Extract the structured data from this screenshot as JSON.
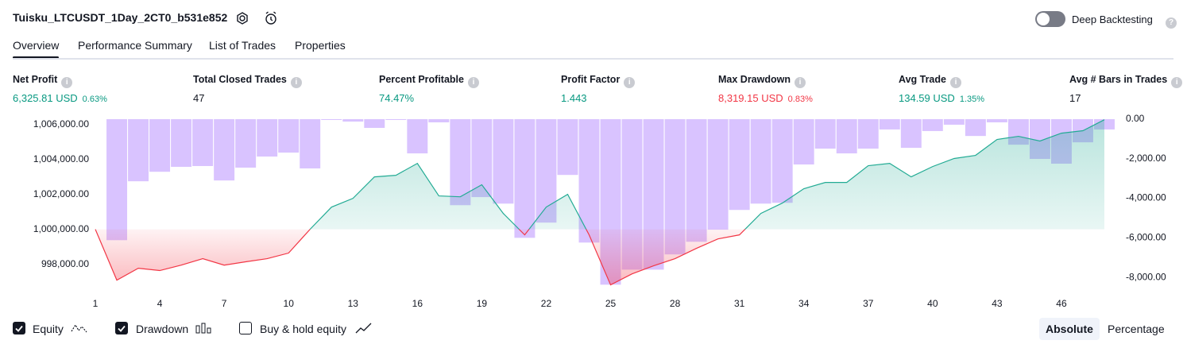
{
  "header": {
    "title": "Tuisku_LTCUSDT_1Day_2CT0_b531e852",
    "toggle_label": "Deep Backtesting",
    "toggle_on": false
  },
  "tabs": {
    "items": [
      "Overview",
      "Performance Summary",
      "List of Trades",
      "Properties"
    ],
    "active": 0
  },
  "metrics": [
    {
      "label": "Net Profit",
      "value": "6,325.81 USD",
      "percent": "0.63%",
      "tone": "positive"
    },
    {
      "label": "Total Closed Trades",
      "value": "47",
      "tone": "neutral"
    },
    {
      "label": "Percent Profitable",
      "value": "74.47%",
      "tone": "positive"
    },
    {
      "label": "Profit Factor",
      "value": "1.443",
      "tone": "positive"
    },
    {
      "label": "Max Drawdown",
      "value": "8,319.15 USD",
      "percent": "0.83%",
      "tone": "negative"
    },
    {
      "label": "Avg Trade",
      "value": "134.59 USD",
      "percent": "1.35%",
      "tone": "positive"
    },
    {
      "label": "Avg # Bars in Trades",
      "value": "17",
      "tone": "neutral"
    }
  ],
  "chart_data": {
    "type": "line",
    "x": [
      1,
      2,
      3,
      4,
      5,
      6,
      7,
      8,
      9,
      10,
      11,
      12,
      13,
      14,
      15,
      16,
      17,
      18,
      19,
      20,
      21,
      22,
      23,
      24,
      25,
      26,
      27,
      28,
      29,
      30,
      31,
      32,
      33,
      34,
      35,
      36,
      37,
      38,
      39,
      40,
      41,
      42,
      43,
      44,
      45,
      46,
      47,
      48
    ],
    "xlim": [
      0.5,
      48.5
    ],
    "xticks": [
      1,
      4,
      7,
      10,
      13,
      16,
      19,
      22,
      25,
      28,
      31,
      34,
      37,
      40,
      43,
      46
    ],
    "ylim": [
      996300,
      1006300
    ],
    "yticks": [
      {
        "value": 1006000,
        "label": "1,006,000.00"
      },
      {
        "value": 1004000,
        "label": "1,004,000.00"
      },
      {
        "value": 1002000,
        "label": "1,002,000.00"
      },
      {
        "value": 1000000,
        "label": "1,000,000.00"
      },
      {
        "value": 998000,
        "label": "998,000.00"
      }
    ],
    "y2lim": [
      -8840,
      0
    ],
    "y2ticks": [
      {
        "value": 0,
        "label": "0.00"
      },
      {
        "value": -2000,
        "label": "-2,000.00"
      },
      {
        "value": -4000,
        "label": "-4,000.00"
      },
      {
        "value": -6000,
        "label": "-6,000.00"
      },
      {
        "value": -8000,
        "label": "-8,000.00"
      }
    ],
    "grid": false,
    "series": [
      {
        "name": "Equity",
        "type": "line",
        "visible": true,
        "color": "#22ab94",
        "negative_color": "#f23645",
        "values": [
          1000000,
          997090,
          997770,
          997640,
          997950,
          998320,
          997950,
          998140,
          998320,
          998640,
          1000000,
          1001270,
          1001770,
          1003000,
          1003090,
          1003770,
          1001910,
          1001860,
          1002550,
          1000910,
          999680,
          1001270,
          1002000,
          999680,
          996820,
          997450,
          997910,
          998320,
          998910,
          999450,
          999680,
          1000910,
          1001500,
          1002320,
          1002680,
          1002680,
          1003640,
          1003770,
          1003000,
          1003590,
          1004050,
          1004230,
          1005140,
          1005320,
          1005050,
          1005500,
          1005640,
          1006270
        ]
      },
      {
        "name": "Drawdown",
        "type": "bar",
        "axis": "y2",
        "visible": true,
        "color": "#b388ff",
        "values": [
          null,
          -6120,
          -3140,
          -2660,
          -2410,
          -2370,
          -3100,
          -2450,
          -1890,
          -1690,
          -2490,
          -40,
          -120,
          -440,
          -40,
          -1730,
          -160,
          -4350,
          -3940,
          -4270,
          -6000,
          -5230,
          -2820,
          -6240,
          -8370,
          -7610,
          -7610,
          -6840,
          -6200,
          -5590,
          -4590,
          -4270,
          -4230,
          -2290,
          -1490,
          -1730,
          -1490,
          -520,
          -1450,
          -600,
          -280,
          -850,
          -160,
          -1290,
          -2010,
          -2250,
          -1170,
          -520
        ]
      }
    ]
  },
  "extra_toggle": {
    "label": "Buy & hold equity",
    "checked": false
  },
  "scale_buttons": {
    "items": [
      "Absolute",
      "Percentage"
    ],
    "active": 0
  }
}
